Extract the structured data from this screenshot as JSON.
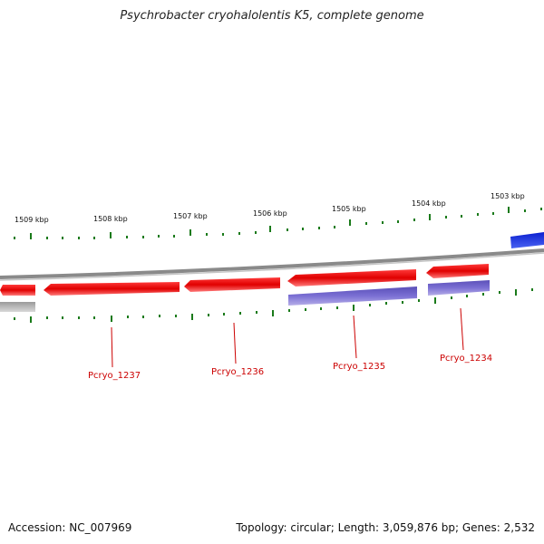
{
  "title": "Psychrobacter cryohalolentis K5, complete genome",
  "footer": {
    "accession": "Accession: NC_007969",
    "summary": "Topology: circular; Length: 3,059,876 bp; Genes: 2,532"
  },
  "scale_labels": [
    "1509 kbp",
    "1508 kbp",
    "1507 kbp",
    "1506 kbp",
    "1505 kbp",
    "1504 kbp",
    "1503 kbp"
  ],
  "gene_labels": [
    "Pcryo_1237",
    "Pcryo_1236",
    "Pcryo_1235",
    "Pcryo_1234"
  ],
  "colors": {
    "cds": "#e8000b",
    "cds_light": "#ff6a6a",
    "rna": "#7a6fd0",
    "other_gene": "#0b1fd8",
    "backbone": "#8a8a8a",
    "tick": "#1a7a1a",
    "label": "#cc0000"
  }
}
